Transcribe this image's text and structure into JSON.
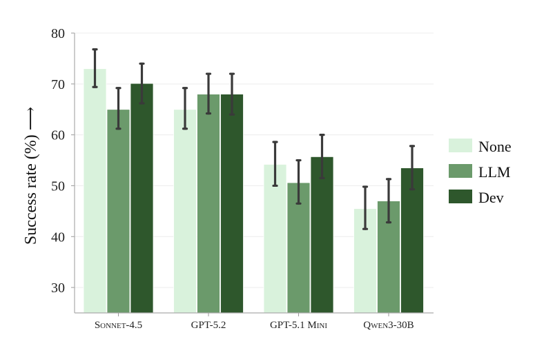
{
  "chart_data": {
    "type": "bar",
    "title": "",
    "xlabel": "",
    "ylabel": "Success rate (%) ⟶",
    "ylim": [
      25,
      80
    ],
    "yticks": [
      30,
      40,
      50,
      60,
      70,
      80
    ],
    "grid": true,
    "legend_position": "right",
    "categories": [
      "Sonnet-4.5",
      "GPT-5.2",
      "GPT-5.1 Mini",
      "Qwen3-30B"
    ],
    "series": [
      {
        "name": "None",
        "color": "#d9f2dc",
        "values": [
          73.0,
          65.0,
          54.2,
          45.5
        ],
        "error_low": [
          69.4,
          61.2,
          50.0,
          41.5
        ],
        "error_high": [
          76.8,
          69.2,
          58.6,
          49.8
        ]
      },
      {
        "name": "LLM",
        "color": "#6b9a6b",
        "values": [
          65.0,
          68.0,
          50.6,
          47.0
        ],
        "error_low": [
          61.2,
          64.2,
          46.5,
          42.8
        ],
        "error_high": [
          69.2,
          72.0,
          55.0,
          51.3
        ]
      },
      {
        "name": "Dev",
        "color": "#2e572c",
        "values": [
          70.1,
          68.0,
          55.7,
          53.5
        ],
        "error_low": [
          66.2,
          64.0,
          51.5,
          49.3
        ],
        "error_high": [
          74.0,
          72.0,
          60.0,
          57.8
        ]
      }
    ]
  }
}
